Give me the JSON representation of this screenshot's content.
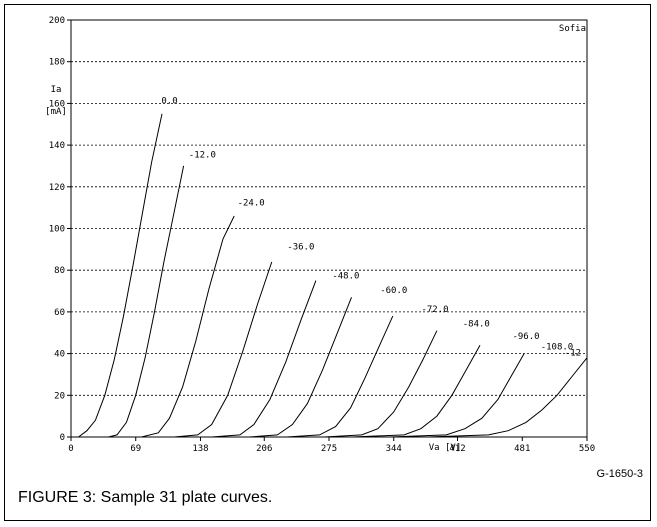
{
  "figure_id": "G-1650-3",
  "caption": "FIGURE 3: Sample 31 plate curves.",
  "chart_data": {
    "type": "line",
    "brand": "Sofia",
    "ylabel_line1": "Ia",
    "ylabel_line2": "[mA]",
    "xlabel": "Va [V]",
    "xlim": [
      0,
      550
    ],
    "ylim": [
      0,
      200
    ],
    "xticks": [
      0,
      69,
      138,
      206,
      275,
      344,
      412,
      481,
      550
    ],
    "xtick_labels": [
      "0",
      "69",
      "138",
      "206",
      "275",
      "344",
      "412",
      "481",
      "550"
    ],
    "yticks": [
      0,
      20,
      40,
      60,
      80,
      100,
      120,
      140,
      160,
      180,
      200
    ],
    "yticks_labels": [
      "0",
      "20",
      "40",
      "60",
      "80",
      "100",
      "120",
      "140",
      "160",
      "180",
      "200"
    ],
    "grid": "horizontal-dotted",
    "series": [
      {
        "name": "0.0",
        "label_at": [
          105,
          160
        ],
        "points": [
          [
            8,
            0
          ],
          [
            17,
            3
          ],
          [
            26,
            8
          ],
          [
            36,
            20
          ],
          [
            46,
            37
          ],
          [
            56,
            58
          ],
          [
            66,
            82
          ],
          [
            76,
            107
          ],
          [
            86,
            132
          ],
          [
            97,
            155
          ]
        ]
      },
      {
        "name": "-12.0",
        "label_at": [
          140,
          134
        ],
        "points": [
          [
            40,
            0
          ],
          [
            49,
            1
          ],
          [
            59,
            7
          ],
          [
            69,
            20
          ],
          [
            79,
            38
          ],
          [
            89,
            60
          ],
          [
            99,
            84
          ],
          [
            110,
            108
          ],
          [
            120,
            130
          ]
        ]
      },
      {
        "name": "-24.0",
        "label_at": [
          192,
          111
        ],
        "points": [
          [
            75,
            0
          ],
          [
            93,
            2
          ],
          [
            105,
            9
          ],
          [
            119,
            24
          ],
          [
            133,
            46
          ],
          [
            147,
            71
          ],
          [
            162,
            95
          ],
          [
            174,
            106
          ]
        ]
      },
      {
        "name": "-36.0",
        "label_at": [
          245,
          90
        ],
        "points": [
          [
            110,
            0
          ],
          [
            135,
            1
          ],
          [
            150,
            6
          ],
          [
            167,
            20
          ],
          [
            183,
            41
          ],
          [
            199,
            64
          ],
          [
            214,
            84
          ]
        ]
      },
      {
        "name": "-48.0",
        "label_at": [
          293,
          76
        ],
        "points": [
          [
            150,
            0
          ],
          [
            180,
            1
          ],
          [
            195,
            6
          ],
          [
            212,
            18
          ],
          [
            229,
            36
          ],
          [
            245,
            56
          ],
          [
            261,
            75
          ]
        ]
      },
      {
        "name": "-60.0",
        "label_at": [
          344,
          69
        ],
        "points": [
          [
            190,
            0
          ],
          [
            220,
            1
          ],
          [
            236,
            6
          ],
          [
            252,
            16
          ],
          [
            268,
            32
          ],
          [
            284,
            50
          ],
          [
            299,
            67
          ]
        ]
      },
      {
        "name": "-72.0",
        "label_at": [
          388,
          60
        ],
        "points": [
          [
            230,
            0
          ],
          [
            265,
            1
          ],
          [
            282,
            5
          ],
          [
            298,
            14
          ],
          [
            313,
            28
          ],
          [
            328,
            43
          ],
          [
            343,
            58
          ]
        ]
      },
      {
        "name": "-84.0",
        "label_at": [
          432,
          53
        ],
        "points": [
          [
            270,
            0
          ],
          [
            310,
            1
          ],
          [
            327,
            4
          ],
          [
            344,
            12
          ],
          [
            360,
            24
          ],
          [
            375,
            37
          ],
          [
            390,
            51
          ]
        ]
      },
      {
        "name": "-96.0",
        "label_at": [
          485,
          47
        ],
        "points": [
          [
            300,
            0
          ],
          [
            355,
            1
          ],
          [
            373,
            4
          ],
          [
            390,
            10
          ],
          [
            406,
            20
          ],
          [
            421,
            32
          ],
          [
            436,
            44
          ]
        ]
      },
      {
        "name": "-108.0",
        "label_at": [
          518,
          42
        ],
        "points": [
          [
            340,
            0
          ],
          [
            400,
            1
          ],
          [
            420,
            4
          ],
          [
            438,
            9
          ],
          [
            455,
            18
          ],
          [
            469,
            29
          ],
          [
            483,
            40
          ]
        ]
      },
      {
        "name": "-12",
        "label_at": [
          535,
          39
        ],
        "points": [
          [
            380,
            0
          ],
          [
            445,
            1
          ],
          [
            466,
            3
          ],
          [
            485,
            7
          ],
          [
            502,
            13
          ],
          [
            518,
            20
          ],
          [
            534,
            29
          ],
          [
            550,
            38
          ]
        ]
      }
    ]
  }
}
